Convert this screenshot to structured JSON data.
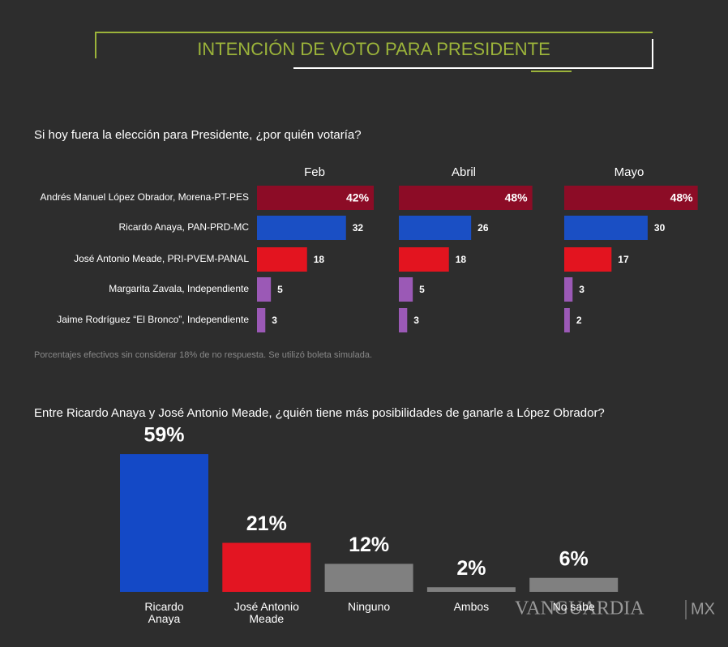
{
  "title": "INTENCIÓN DE VOTO PARA PRESIDENTE",
  "logo": {
    "name": "VANGUARDIA",
    "suffix": "MX"
  },
  "chart_data": [
    {
      "type": "panel-bar",
      "title": "Si hoy fuera la elección para Presidente, ¿por quién votaría?",
      "categories": [
        "Andrés Manuel López Obrador, Morena-PT-PES",
        "Ricardo Anaya, PAN-PRD-MC",
        "José Antonio Meade, PRI-PVEM-PANAL",
        "Margarita Zavala, Independiente",
        "Jaime Rodríguez “El Bronco”, Independiente"
      ],
      "colors": [
        "#8c0c26",
        "#1a4fc4",
        "#e3141f",
        "#9b59b6",
        "#9b59b6"
      ],
      "series": [
        {
          "name": "Feb",
          "values": [
            42,
            32,
            18,
            5,
            3
          ],
          "value_labels": [
            "42%",
            "32",
            "18",
            "5",
            "3"
          ]
        },
        {
          "name": "Abril",
          "values": [
            48,
            26,
            18,
            5,
            3
          ],
          "value_labels": [
            "48%",
            "26",
            "18",
            "5",
            "3"
          ]
        },
        {
          "name": "Mayo",
          "values": [
            48,
            30,
            17,
            3,
            2
          ],
          "value_labels": [
            "48%",
            "30",
            "17",
            "3",
            "2"
          ]
        }
      ],
      "note": "Porcentajes efectivos sin considerar 18% de no respuesta. Se utilizó boleta simulada."
    },
    {
      "type": "bar",
      "title": "Entre Ricardo Anaya y José Antonio Meade, ¿quién tiene más posibilidades de ganarle a López Obrador?",
      "categories": [
        "Ricardo Anaya",
        "José Antonio Meade",
        "Ninguno",
        "Ambos",
        "No sabe"
      ],
      "values": [
        59,
        21,
        12,
        2,
        6
      ],
      "value_labels": [
        "59%",
        "21%",
        "12%",
        "2%",
        "6%"
      ],
      "colors": [
        "#1449c6",
        "#e31522",
        "#808080",
        "#808080",
        "#808080"
      ]
    }
  ]
}
